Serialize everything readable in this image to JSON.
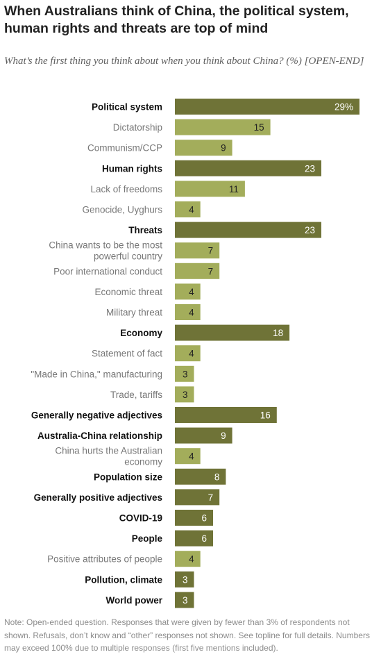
{
  "title": "When Australians think of China, the political system, human rights and threats are top of mind",
  "subtitle": "What’s the first thing you think about when you think about China? (%) [OPEN-END]",
  "note": "Note: Open-ended question. Responses that were given by fewer than 3% of respondents not shown. Refusals, don’t know and “other” responses not shown. See topline for full details. Numbers may exceed 100% due to multiple responses (first five mentions included).",
  "colors": {
    "main_bar": "#6f7337",
    "sub_bar": "#a3ad5b",
    "main_value_text": "#ffffff",
    "sub_value_text": "#222222",
    "main_label_text": "#111111",
    "sub_label_text": "#777777"
  },
  "chart_data": {
    "type": "bar",
    "orientation": "horizontal",
    "xlim": [
      0,
      29
    ],
    "categories": [
      "Political system",
      "Dictatorship",
      "Communism/CCP",
      "Human rights",
      "Lack of freedoms",
      "Genocide, Uyghurs",
      "Threats",
      "China wants to be the most powerful country",
      "Poor international conduct",
      "Economic threat",
      "Military threat",
      "Economy",
      "Statement of fact",
      "\"Made in China,\" manufacturing",
      "Trade, tariffs",
      "Generally negative adjectives",
      "Australia-China relationship",
      "China hurts the Australian economy",
      "Population size",
      "Generally positive adjectives",
      "COVID-19",
      "People",
      "Positive attributes of people",
      "Pollution, climate",
      "World power"
    ],
    "label_lines": [
      [
        "Political system"
      ],
      [
        "Dictatorship"
      ],
      [
        "Communism/CCP"
      ],
      [
        "Human rights"
      ],
      [
        "Lack of freedoms"
      ],
      [
        "Genocide, Uyghurs"
      ],
      [
        "Threats"
      ],
      [
        "China wants to be the most",
        "powerful country"
      ],
      [
        "Poor international conduct"
      ],
      [
        "Economic threat"
      ],
      [
        "Military threat"
      ],
      [
        "Economy"
      ],
      [
        "Statement of fact"
      ],
      [
        "\"Made in China,\" manufacturing"
      ],
      [
        "Trade, tariffs"
      ],
      [
        "Generally negative adjectives"
      ],
      [
        "Australia-China relationship"
      ],
      [
        "China hurts the Australian",
        "economy"
      ],
      [
        "Population size"
      ],
      [
        "Generally positive adjectives"
      ],
      [
        "COVID-19"
      ],
      [
        "People"
      ],
      [
        "Positive attributes of people"
      ],
      [
        "Pollution, climate"
      ],
      [
        "World power"
      ]
    ],
    "values": [
      29,
      15,
      9,
      23,
      11,
      4,
      23,
      7,
      7,
      4,
      4,
      18,
      4,
      3,
      3,
      16,
      9,
      4,
      8,
      7,
      6,
      6,
      4,
      3,
      3
    ],
    "value_labels": [
      "29%",
      "15",
      "9",
      "23",
      "11",
      "4",
      "23",
      "7",
      "7",
      "4",
      "4",
      "18",
      "4",
      "3",
      "3",
      "16",
      "9",
      "4",
      "8",
      "7",
      "6",
      "6",
      "4",
      "3",
      "3"
    ],
    "is_main_category": [
      true,
      false,
      false,
      true,
      false,
      false,
      true,
      false,
      false,
      false,
      false,
      true,
      false,
      false,
      false,
      true,
      true,
      false,
      true,
      true,
      true,
      true,
      false,
      true,
      true
    ]
  }
}
